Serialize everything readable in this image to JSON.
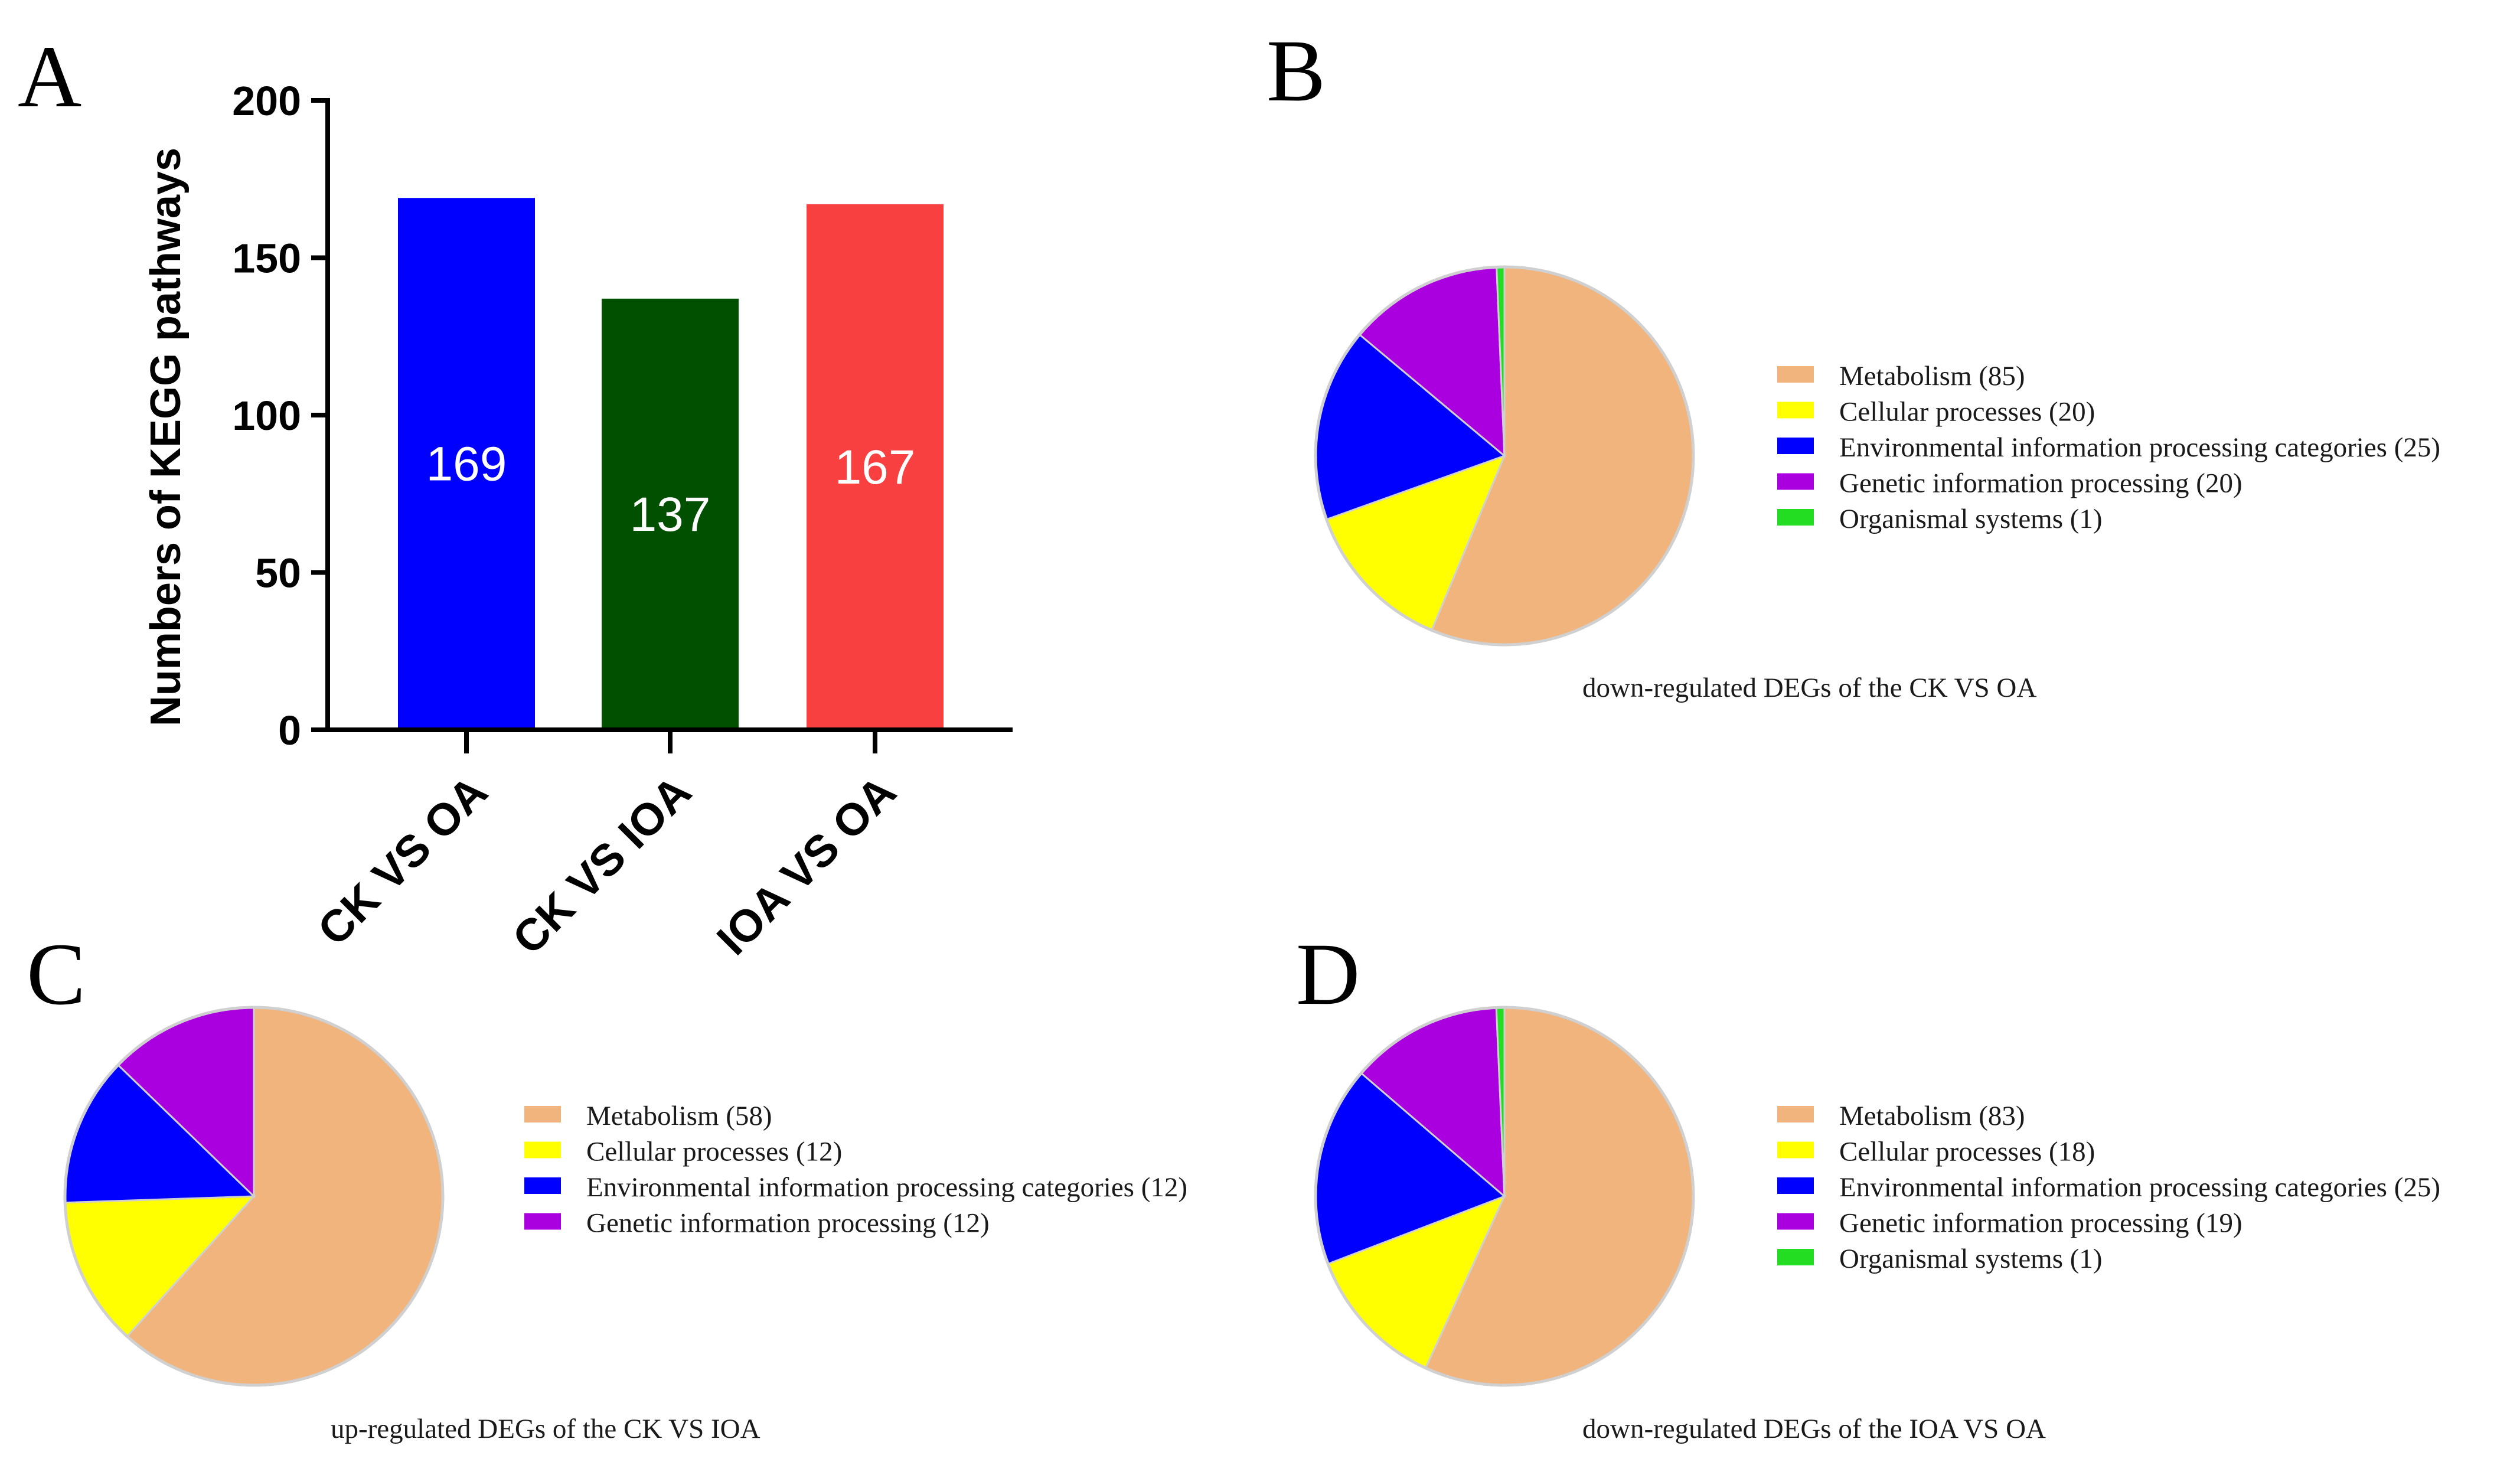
{
  "panels": {
    "A": "A",
    "B": "B",
    "C": "C",
    "D": "D"
  },
  "chart_data": [
    {
      "id": "A",
      "type": "bar",
      "title": "",
      "xlabel": "",
      "ylabel": "Numbers of KEGG pathways",
      "categories": [
        "CK VS OA",
        "CK VS IOA",
        "IOA VS OA"
      ],
      "values": [
        169,
        137,
        167
      ],
      "value_labels": [
        "169",
        "137",
        "167"
      ],
      "colors": [
        "#0000ff",
        "#005000",
        "#f84040"
      ],
      "ylim": [
        0,
        200
      ],
      "yticks": [
        0,
        50,
        100,
        150,
        200
      ],
      "ytick_labels": [
        "0",
        "50",
        "100",
        "150",
        "200"
      ],
      "grid": false
    },
    {
      "id": "B",
      "type": "pie",
      "caption": "down-regulated DEGs of the CK VS OA",
      "slices": [
        {
          "label": "Metabolism (85)",
          "value": 85,
          "color": "#f0b47c"
        },
        {
          "label": "Cellular processes (20)",
          "value": 20,
          "color": "#ffff00"
        },
        {
          "label": "Environmental information processing categories (25)",
          "value": 25,
          "color": "#0000ff"
        },
        {
          "label": "Genetic information processing (20)",
          "value": 20,
          "color": "#aa00e0"
        },
        {
          "label": "Organismal systems (1)",
          "value": 1,
          "color": "#22dd22"
        }
      ],
      "legend_position": "right"
    },
    {
      "id": "C",
      "type": "pie",
      "caption": "up-regulated DEGs of the CK VS IOA",
      "slices": [
        {
          "label": "Metabolism (58)",
          "value": 58,
          "color": "#f0b47c"
        },
        {
          "label": "Cellular processes (12)",
          "value": 12,
          "color": "#ffff00"
        },
        {
          "label": "Environmental information processing categories (12)",
          "value": 12,
          "color": "#0000ff"
        },
        {
          "label": "Genetic information processing (12)",
          "value": 12,
          "color": "#aa00e0"
        }
      ],
      "legend_position": "right"
    },
    {
      "id": "D",
      "type": "pie",
      "caption": "down-regulated DEGs of the IOA VS OA",
      "slices": [
        {
          "label": "Metabolism (83)",
          "value": 83,
          "color": "#f0b47c"
        },
        {
          "label": "Cellular processes (18)",
          "value": 18,
          "color": "#ffff00"
        },
        {
          "label": "Environmental information processing categories (25)",
          "value": 25,
          "color": "#0000ff"
        },
        {
          "label": "Genetic information processing (19)",
          "value": 19,
          "color": "#aa00e0"
        },
        {
          "label": "Organismal systems (1)",
          "value": 1,
          "color": "#22dd22"
        }
      ],
      "legend_position": "right"
    }
  ]
}
